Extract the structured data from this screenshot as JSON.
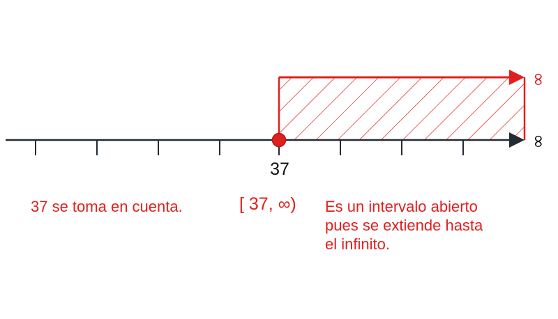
{
  "number_line": {
    "point_label": "37",
    "infinity_symbol": "∞",
    "point_value": 37,
    "point_included": true,
    "shaded_direction": "right"
  },
  "notation": {
    "interval": "[ 37, ∞)"
  },
  "captions": {
    "left_note": "37 se toma en cuenta.",
    "right_note_lines": [
      "Es un intervalo abierto",
      "pues se extiende hasta",
      "el infinito."
    ]
  },
  "colors": {
    "highlight": "#e0201e",
    "axis": "#222a33"
  }
}
